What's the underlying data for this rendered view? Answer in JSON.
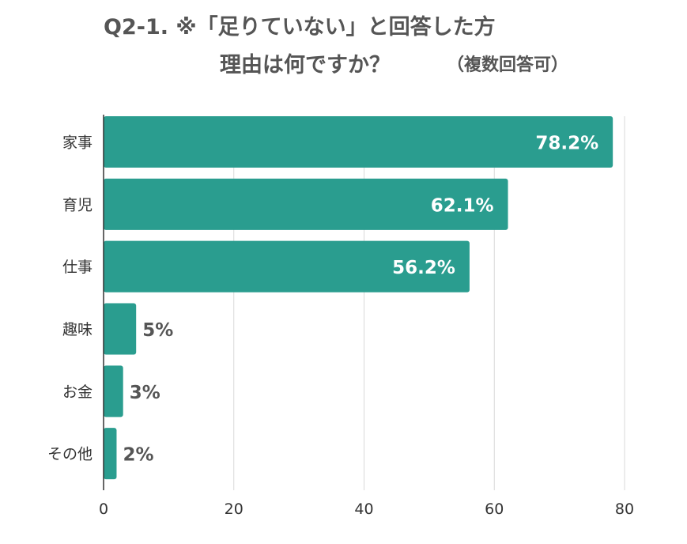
{
  "title": {
    "line1": "Q2-1. ※「足りていない」と回答した方",
    "line2": "理由は何ですか？",
    "note": "（複数回答可）"
  },
  "colors": {
    "bar": "#2a9d8f",
    "grid": "#d9d9d9",
    "axis": "#333333",
    "label_dark": "#555555",
    "label_light": "#ffffff"
  },
  "chart_data": {
    "type": "bar",
    "orientation": "horizontal",
    "categories": [
      "家事",
      "育児",
      "仕事",
      "趣味",
      "お金",
      "その他"
    ],
    "values": [
      78.2,
      62.1,
      56.2,
      5,
      3,
      2
    ],
    "data_labels": [
      "78.2%",
      "62.1%",
      "56.2%",
      "5%",
      "3%",
      "2%"
    ],
    "xlim": [
      0,
      80
    ],
    "xticks": [
      0,
      20,
      40,
      60,
      80
    ],
    "xtick_labels": [
      "0",
      "20",
      "40",
      "60",
      "80"
    ],
    "xlabel": "",
    "ylabel": "",
    "grid": true
  }
}
